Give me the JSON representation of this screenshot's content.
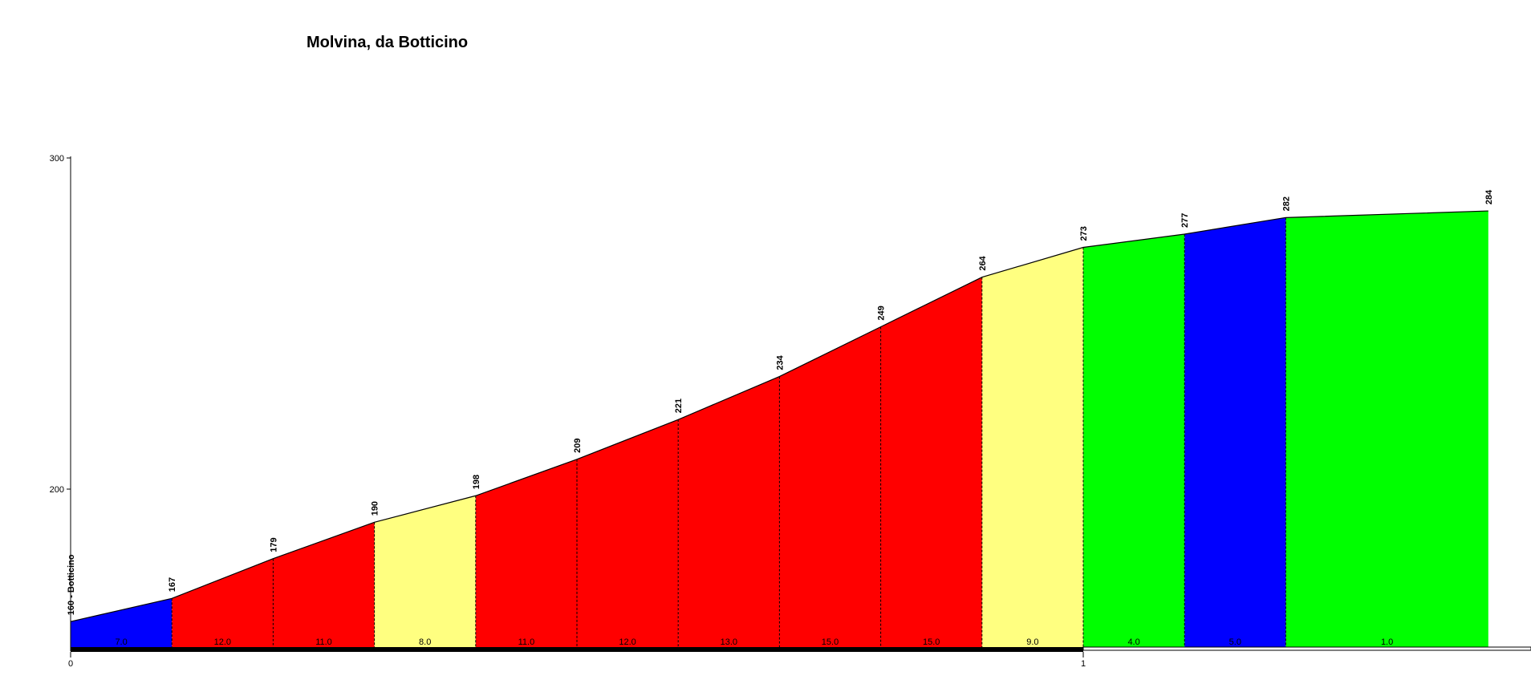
{
  "chart_data": {
    "type": "area",
    "title": "Molvina, da Botticino",
    "xlabel": "",
    "ylabel": "",
    "x_unit": "km",
    "xlim": [
      0,
      1.45
    ],
    "ylim": [
      153,
      300
    ],
    "y_ticks": [
      "200",
      "300"
    ],
    "x_ticks": [
      "0",
      "1"
    ],
    "x": [
      0,
      0.1,
      0.2,
      0.3,
      0.4,
      0.5,
      0.6,
      0.7,
      0.8,
      0.9,
      1.0,
      1.1,
      1.2,
      1.4
    ],
    "elevation_labels": [
      "160 - Botticino",
      "167",
      "179",
      "190",
      "198",
      "209",
      "221",
      "234",
      "249",
      "264",
      "273",
      "277",
      "282",
      "284"
    ],
    "elevations": [
      160,
      167,
      179,
      190,
      198,
      209,
      221,
      234,
      249,
      264,
      273,
      277,
      282,
      284
    ],
    "gradient_labels": [
      "7.0",
      "12.0",
      "11.0",
      "8.0",
      "11.0",
      "12.0",
      "13.0",
      "15.0",
      "15.0",
      "9.0",
      "4.0",
      "5.0",
      "1.0"
    ],
    "gradients": [
      7.0,
      12.0,
      11.0,
      8.0,
      11.0,
      12.0,
      13.0,
      15.0,
      15.0,
      9.0,
      4.0,
      5.0,
      1.0
    ],
    "segment_colors": [
      "#0000ff",
      "#ff0000",
      "#ff0000",
      "#ffff80",
      "#ff0000",
      "#ff0000",
      "#ff0000",
      "#ff0000",
      "#ff0000",
      "#ffff80",
      "#00ff00",
      "#0000ff",
      "#00ff00"
    ],
    "grid": false,
    "legend": "none"
  }
}
